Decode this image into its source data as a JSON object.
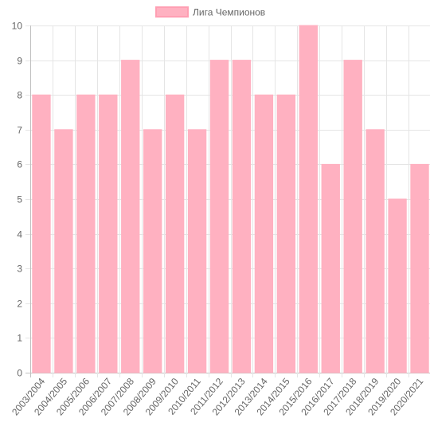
{
  "chart_data": {
    "type": "bar",
    "categories": [
      "2003/2004",
      "2004/2005",
      "2005/2006",
      "2006/2007",
      "2007/2008",
      "2008/2009",
      "2009/2010",
      "2010/2011",
      "2011/2012",
      "2012/2013",
      "2013/2014",
      "2014/2015",
      "2015/2016",
      "2016/2017",
      "2017/2018",
      "2018/2019",
      "2019/2020",
      "2020/2021"
    ],
    "series": [
      {
        "name": "Лига Чемпионов",
        "values": [
          8,
          7,
          8,
          8,
          9,
          7,
          8,
          7,
          9,
          9,
          8,
          8,
          10,
          6,
          9,
          7,
          5,
          6
        ]
      }
    ],
    "ylim": [
      0,
      10
    ],
    "yticks": [
      0,
      1,
      2,
      3,
      4,
      5,
      6,
      7,
      8,
      9,
      10
    ],
    "grid": true,
    "legend_position": "top-center",
    "colors": {
      "bar_fill": "#ffb1c1",
      "bar_border": "#ff9fb3",
      "grid": "#e5e5e5",
      "axis": "#c0c0c0",
      "text": "#666666"
    }
  }
}
